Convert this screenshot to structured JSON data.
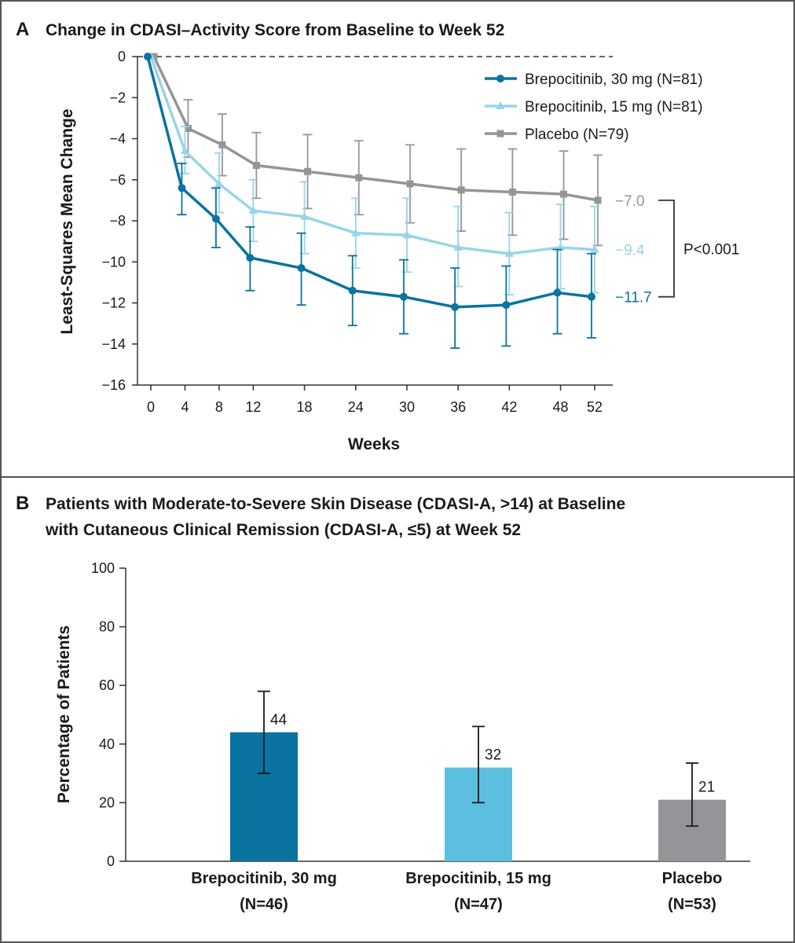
{
  "colors": {
    "dark_blue": "#0a73a0",
    "light_blue": "#99d4e8",
    "gray": "#939598",
    "bar_dark_blue": "#0a73a0",
    "bar_light_blue": "#5dbfdf",
    "bar_gray": "#939598",
    "frame": "#555555"
  },
  "chart_data": [
    {
      "panel": "A",
      "type": "line",
      "title": "Change in CDASI–Activity Score from Baseline to Week 52",
      "xlabel": "Weeks",
      "ylabel": "Least-Squares Mean Change",
      "x_ticks": [
        0,
        4,
        8,
        12,
        18,
        24,
        30,
        36,
        42,
        48,
        52
      ],
      "y_ticks": [
        0,
        -2,
        -4,
        -6,
        -8,
        -10,
        -12,
        -14,
        -16
      ],
      "y_tick_labels": [
        "0",
        "−2",
        "−4",
        "−6",
        "−8",
        "−10",
        "−12",
        "−14",
        "−16"
      ],
      "xlim": [
        0,
        52
      ],
      "ylim": [
        -16,
        0
      ],
      "reference_line": 0,
      "legend_position": "top-right",
      "series": [
        {
          "name": "Brepocitinib, 30 mg (N=81)",
          "color_key": "dark_blue",
          "marker": "circle",
          "x": [
            0,
            4,
            8,
            12,
            18,
            24,
            30,
            36,
            42,
            48,
            52
          ],
          "y": [
            0,
            -6.4,
            -7.9,
            -9.8,
            -10.3,
            -11.4,
            -11.7,
            -12.2,
            -12.1,
            -11.5,
            -11.7
          ],
          "err_low": [
            0,
            -7.7,
            -9.3,
            -11.4,
            -12.1,
            -13.1,
            -13.5,
            -14.2,
            -14.1,
            -13.5,
            -13.7
          ],
          "err_high": [
            0,
            -5.2,
            -6.4,
            -8.3,
            -8.6,
            -9.7,
            -9.9,
            -10.3,
            -10.2,
            -9.4,
            -9.6
          ],
          "end_label": "−11.7"
        },
        {
          "name": "Brepocitinib, 15 mg (N=81)",
          "color_key": "light_blue",
          "marker": "triangle",
          "x": [
            0,
            4,
            8,
            12,
            18,
            24,
            30,
            36,
            42,
            48,
            52
          ],
          "y": [
            0,
            -4.6,
            -6.2,
            -7.5,
            -7.8,
            -8.6,
            -8.7,
            -9.3,
            -9.6,
            -9.3,
            -9.4
          ],
          "err_low": [
            0,
            -5.7,
            -7.6,
            -9.0,
            -9.6,
            -10.3,
            -10.5,
            -11.2,
            -11.6,
            -11.3,
            -11.5
          ],
          "err_high": [
            0,
            -3.4,
            -4.7,
            -6.0,
            -6.1,
            -6.9,
            -6.9,
            -7.3,
            -7.6,
            -7.2,
            -7.3
          ],
          "end_label": "−9.4"
        },
        {
          "name": "Placebo (N=79)",
          "color_key": "gray",
          "marker": "square",
          "x": [
            0,
            4,
            8,
            12,
            18,
            24,
            30,
            36,
            42,
            48,
            52
          ],
          "y": [
            0,
            -3.5,
            -4.3,
            -5.3,
            -5.6,
            -5.9,
            -6.2,
            -6.5,
            -6.6,
            -6.7,
            -7.0
          ],
          "err_low": [
            0,
            -4.9,
            -5.8,
            -6.9,
            -7.4,
            -7.7,
            -8.1,
            -8.5,
            -8.7,
            -8.9,
            -9.2
          ],
          "err_high": [
            0,
            -2.1,
            -2.8,
            -3.7,
            -3.8,
            -4.1,
            -4.3,
            -4.5,
            -4.5,
            -4.6,
            -4.8
          ],
          "end_label": "−7.0"
        }
      ],
      "annotation": "P<0.001"
    },
    {
      "panel": "B",
      "type": "bar",
      "title_line1": "Patients with Moderate-to-Severe Skin Disease (CDASI-A, >14) at Baseline",
      "title_line2": "with Cutaneous Clinical Remission (CDASI-A, ≤5) at Week 52",
      "ylabel": "Percentage of Patients",
      "xlabel": "",
      "ylim": [
        0,
        100
      ],
      "y_ticks": [
        0,
        20,
        40,
        60,
        80,
        100
      ],
      "categories": [
        {
          "line1": "Brepocitinib, 30 mg",
          "line2": "(N=46)"
        },
        {
          "line1": "Brepocitinib, 15 mg",
          "line2": "(N=47)"
        },
        {
          "line1": "Placebo",
          "line2": "(N=53)"
        }
      ],
      "values": [
        44,
        32,
        21
      ],
      "value_labels": [
        "44",
        "32",
        "21"
      ],
      "err_low": [
        30,
        20,
        12
      ],
      "err_high": [
        58,
        46,
        33.5
      ],
      "bar_color_keys": [
        "bar_dark_blue",
        "bar_light_blue",
        "bar_gray"
      ]
    }
  ]
}
